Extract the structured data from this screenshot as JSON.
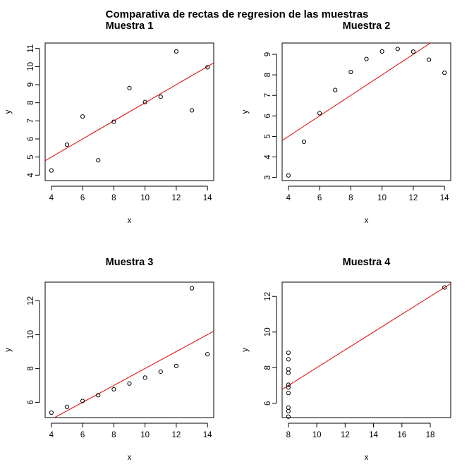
{
  "figure": {
    "title": "Comparativa de rectas de regresion de las muestras"
  },
  "chart_data": [
    {
      "type": "scatter",
      "title": "Muestra 1",
      "xlabel": "x",
      "ylabel": "y",
      "xlim": [
        3.6,
        14.4
      ],
      "ylim": [
        3.7,
        11.3
      ],
      "xticks": [
        4,
        6,
        8,
        10,
        12,
        14
      ],
      "yticks": [
        4,
        5,
        6,
        7,
        8,
        9,
        10,
        11
      ],
      "grid": false,
      "x": [
        10,
        8,
        13,
        9,
        11,
        14,
        6,
        4,
        12,
        7,
        5
      ],
      "y": [
        8.04,
        6.95,
        7.58,
        8.81,
        8.33,
        9.96,
        7.24,
        4.26,
        10.84,
        4.82,
        5.68
      ],
      "regression": {
        "intercept": 3.0,
        "slope": 0.5,
        "color": "#e00000"
      }
    },
    {
      "type": "scatter",
      "title": "Muestra 2",
      "xlabel": "x",
      "ylabel": "y",
      "xlim": [
        3.6,
        14.4
      ],
      "ylim": [
        2.85,
        9.55
      ],
      "xticks": [
        4,
        6,
        8,
        10,
        12,
        14
      ],
      "yticks": [
        3,
        4,
        5,
        6,
        7,
        8,
        9
      ],
      "grid": false,
      "x": [
        10,
        8,
        13,
        9,
        11,
        14,
        6,
        4,
        12,
        7,
        5
      ],
      "y": [
        9.14,
        8.14,
        8.74,
        8.77,
        9.26,
        8.1,
        6.13,
        3.1,
        9.13,
        7.26,
        4.74
      ],
      "regression": {
        "intercept": 3.0,
        "slope": 0.5,
        "color": "#e00000"
      }
    },
    {
      "type": "scatter",
      "title": "Muestra 3",
      "xlabel": "x",
      "ylabel": "y",
      "xlim": [
        3.6,
        14.4
      ],
      "ylim": [
        5.1,
        13.1
      ],
      "xticks": [
        4,
        6,
        8,
        10,
        12,
        14
      ],
      "yticks": [
        6,
        8,
        10,
        12
      ],
      "grid": false,
      "x": [
        10,
        8,
        13,
        9,
        11,
        14,
        6,
        4,
        12,
        7,
        5
      ],
      "y": [
        7.46,
        6.77,
        12.74,
        7.11,
        7.81,
        8.84,
        6.08,
        5.39,
        8.15,
        6.42,
        5.73
      ],
      "regression": {
        "intercept": 3.0,
        "slope": 0.5,
        "color": "#e00000"
      }
    },
    {
      "type": "scatter",
      "title": "Muestra 4",
      "xlabel": "x",
      "ylabel": "y",
      "xlim": [
        7.56,
        19.44
      ],
      "ylim": [
        5.2,
        12.8
      ],
      "xticks": [
        8,
        10,
        12,
        14,
        16,
        18
      ],
      "yticks": [
        6,
        8,
        10,
        12
      ],
      "grid": false,
      "x": [
        8,
        8,
        8,
        8,
        8,
        8,
        8,
        19,
        8,
        8,
        8
      ],
      "y": [
        6.58,
        5.76,
        7.71,
        8.84,
        8.47,
        7.04,
        5.25,
        12.5,
        5.56,
        7.91,
        6.89
      ],
      "regression": {
        "intercept": 3.0,
        "slope": 0.5,
        "color": "#e00000"
      }
    }
  ]
}
